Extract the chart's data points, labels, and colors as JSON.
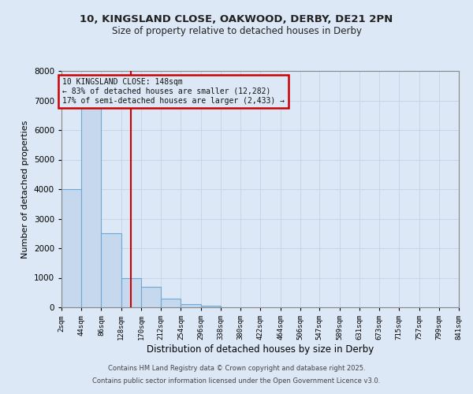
{
  "title_line1": "10, KINGSLAND CLOSE, OAKWOOD, DERBY, DE21 2PN",
  "title_line2": "Size of property relative to detached houses in Derby",
  "xlabel": "Distribution of detached houses by size in Derby",
  "ylabel": "Number of detached properties",
  "bin_edges": [
    2,
    44,
    86,
    128,
    170,
    212,
    254,
    296,
    338,
    380,
    422,
    464,
    506,
    547,
    589,
    631,
    673,
    715,
    757,
    799,
    841
  ],
  "bar_heights": [
    4000,
    7200,
    2500,
    1000,
    700,
    300,
    100,
    50,
    10,
    5,
    2,
    1,
    0,
    0,
    0,
    0,
    0,
    0,
    0,
    0
  ],
  "bar_color": "#c5d8ee",
  "bar_edge_color": "#6ea8d5",
  "red_line_x": 148,
  "annotation_title": "10 KINGSLAND CLOSE: 148sqm",
  "annotation_line2": "← 83% of detached houses are smaller (12,282)",
  "annotation_line3": "17% of semi-detached houses are larger (2,433) →",
  "annotation_box_color": "#cc0000",
  "ylim": [
    0,
    8000
  ],
  "yticks": [
    0,
    1000,
    2000,
    3000,
    4000,
    5000,
    6000,
    7000,
    8000
  ],
  "xtick_labels": [
    "2sqm",
    "44sqm",
    "86sqm",
    "128sqm",
    "170sqm",
    "212sqm",
    "254sqm",
    "296sqm",
    "338sqm",
    "380sqm",
    "422sqm",
    "464sqm",
    "506sqm",
    "547sqm",
    "589sqm",
    "631sqm",
    "673sqm",
    "715sqm",
    "757sqm",
    "799sqm",
    "841sqm"
  ],
  "grid_color": "#c8d4e8",
  "background_color": "#dce8f5",
  "footer_line1": "Contains HM Land Registry data © Crown copyright and database right 2025.",
  "footer_line2": "Contains public sector information licensed under the Open Government Licence v3.0."
}
